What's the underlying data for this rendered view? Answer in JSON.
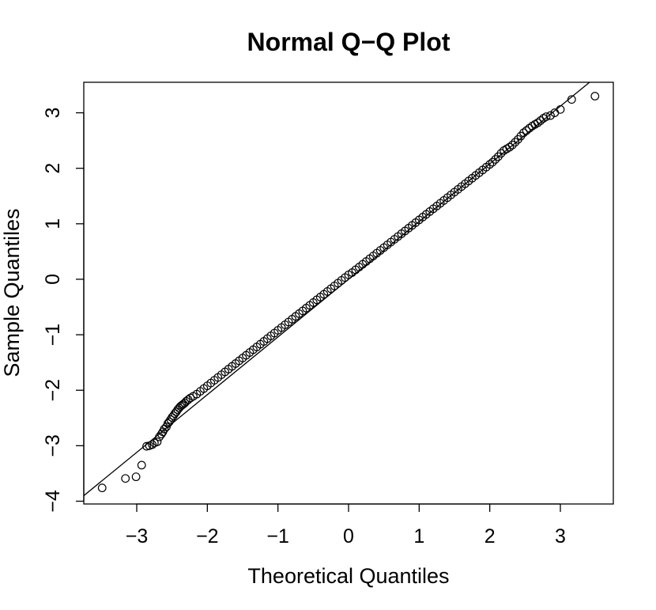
{
  "chart_data": {
    "type": "scatter",
    "title": "Normal Q−Q Plot",
    "xlabel": "Theoretical Quantiles",
    "ylabel": "Sample Quantiles",
    "xlim": [
      -3.75,
      3.75
    ],
    "ylim": [
      -4.05,
      3.55
    ],
    "x_ticks": [
      -3,
      -2,
      -1,
      0,
      1,
      2,
      3
    ],
    "x_tick_labels": [
      "−3",
      "−2",
      "−1",
      "0",
      "1",
      "2",
      "3"
    ],
    "y_ticks": [
      -4,
      -3,
      -2,
      -1,
      0,
      1,
      2,
      3
    ],
    "y_tick_labels": [
      "−4",
      "−3",
      "−2",
      "−1",
      "0",
      "1",
      "2",
      "3"
    ],
    "reference_line": {
      "intercept": 0.0,
      "slope": 1.04
    },
    "grid": false,
    "legend": "none",
    "marker": "open-circle",
    "series": [
      {
        "x": [
          -3.49,
          -3.16,
          -3.01,
          -2.93,
          -2.86,
          -2.82,
          -2.78,
          -2.75,
          -2.71,
          -2.68,
          -2.65,
          -2.63,
          -2.61,
          -2.58,
          -2.56,
          -2.54,
          -2.52,
          -2.5,
          -2.48,
          -2.46,
          -2.44,
          -2.42,
          -2.4,
          -2.38,
          -2.36,
          -2.34,
          -2.32,
          -2.3,
          -2.27,
          -2.24,
          -2.2,
          -2.15,
          -2.1,
          -2.05,
          -2.0,
          -1.95,
          -1.9,
          -1.85,
          -1.8,
          -1.75,
          -1.7,
          -1.65,
          -1.6,
          -1.55,
          -1.5,
          -1.45,
          -1.4,
          -1.35,
          -1.3,
          -1.25,
          -1.2,
          -1.15,
          -1.1,
          -1.05,
          -1.0,
          -0.95,
          -0.9,
          -0.85,
          -0.8,
          -0.75,
          -0.7,
          -0.65,
          -0.6,
          -0.55,
          -0.5,
          -0.45,
          -0.4,
          -0.35,
          -0.3,
          -0.25,
          -0.2,
          -0.15,
          -0.1,
          -0.05,
          0.0,
          0.05,
          0.1,
          0.15,
          0.2,
          0.25,
          0.3,
          0.35,
          0.4,
          0.45,
          0.5,
          0.55,
          0.6,
          0.65,
          0.7,
          0.75,
          0.8,
          0.85,
          0.9,
          0.95,
          1.0,
          1.05,
          1.1,
          1.15,
          1.2,
          1.25,
          1.3,
          1.35,
          1.4,
          1.45,
          1.5,
          1.55,
          1.6,
          1.65,
          1.7,
          1.75,
          1.8,
          1.85,
          1.9,
          1.95,
          2.0,
          2.04,
          2.08,
          2.12,
          2.16,
          2.2,
          2.24,
          2.28,
          2.32,
          2.36,
          2.4,
          2.44,
          2.48,
          2.52,
          2.56,
          2.6,
          2.64,
          2.68,
          2.72,
          2.76,
          2.8,
          2.86,
          2.92,
          3.0,
          3.16,
          3.49
        ],
        "y": [
          -3.76,
          -3.59,
          -3.56,
          -3.35,
          -3.01,
          -3.0,
          -2.98,
          -2.95,
          -2.93,
          -2.84,
          -2.79,
          -2.75,
          -2.7,
          -2.66,
          -2.6,
          -2.57,
          -2.53,
          -2.49,
          -2.46,
          -2.42,
          -2.39,
          -2.35,
          -2.32,
          -2.29,
          -2.27,
          -2.25,
          -2.23,
          -2.2,
          -2.17,
          -2.14,
          -2.11,
          -2.07,
          -2.02,
          -1.97,
          -1.92,
          -1.87,
          -1.82,
          -1.77,
          -1.72,
          -1.67,
          -1.62,
          -1.57,
          -1.52,
          -1.47,
          -1.42,
          -1.37,
          -1.32,
          -1.27,
          -1.22,
          -1.17,
          -1.12,
          -1.07,
          -1.02,
          -0.97,
          -0.92,
          -0.87,
          -0.82,
          -0.77,
          -0.72,
          -0.67,
          -0.62,
          -0.57,
          -0.52,
          -0.47,
          -0.42,
          -0.37,
          -0.32,
          -0.27,
          -0.22,
          -0.17,
          -0.12,
          -0.07,
          -0.02,
          0.03,
          0.08,
          0.12,
          0.17,
          0.22,
          0.27,
          0.32,
          0.37,
          0.42,
          0.47,
          0.52,
          0.57,
          0.62,
          0.67,
          0.72,
          0.77,
          0.82,
          0.87,
          0.92,
          0.97,
          1.02,
          1.07,
          1.12,
          1.17,
          1.22,
          1.27,
          1.32,
          1.37,
          1.42,
          1.47,
          1.52,
          1.57,
          1.62,
          1.67,
          1.72,
          1.77,
          1.82,
          1.87,
          1.92,
          1.97,
          2.02,
          2.07,
          2.11,
          2.16,
          2.21,
          2.27,
          2.32,
          2.35,
          2.38,
          2.42,
          2.47,
          2.52,
          2.58,
          2.64,
          2.68,
          2.72,
          2.76,
          2.79,
          2.82,
          2.86,
          2.9,
          2.93,
          2.95,
          3.0,
          3.06,
          3.24,
          3.3
        ]
      }
    ]
  }
}
